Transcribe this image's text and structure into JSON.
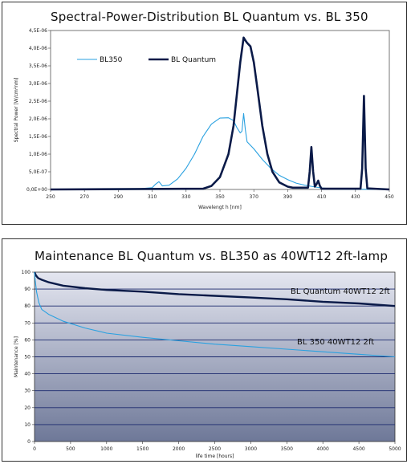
{
  "chart_data": [
    {
      "type": "line",
      "title": "Spectral-Power-Distribution      BL  Quantum   vs.  BL  350",
      "xlabel": "Wavelengt h [nm]",
      "ylabel": "Spectral Power [W/cm²nm]",
      "xlim": [
        250,
        450
      ],
      "ylim": [
        0,
        4.5e-06
      ],
      "x_ticks": [
        "250",
        "270",
        "290",
        "310",
        "330",
        "350",
        "370",
        "390",
        "410",
        "430",
        "450"
      ],
      "y_ticks": [
        "0,0E+00",
        "5,0E-07",
        "1,0E-06",
        "1,5E-06",
        "2,0E-06",
        "2,5E-06",
        "3,0E-06",
        "3,5E-06",
        "4,0E-06",
        "4,5E-06"
      ],
      "grid": false,
      "legend": "top-left",
      "series": [
        {
          "name": "BL350",
          "color": "#2aa1e0",
          "points": [
            [
              250,
              0.01
            ],
            [
              300,
              0.01
            ],
            [
              310,
              0.05
            ],
            [
              312,
              0.15
            ],
            [
              314,
              0.22
            ],
            [
              316,
              0.1
            ],
            [
              320,
              0.12
            ],
            [
              325,
              0.3
            ],
            [
              330,
              0.6
            ],
            [
              335,
              1.0
            ],
            [
              340,
              1.5
            ],
            [
              345,
              1.85
            ],
            [
              350,
              2.02
            ],
            [
              355,
              2.03
            ],
            [
              358,
              1.95
            ],
            [
              360,
              1.75
            ],
            [
              362,
              1.6
            ],
            [
              363,
              1.65
            ],
            [
              364,
              2.15
            ],
            [
              365,
              1.7
            ],
            [
              366,
              1.35
            ],
            [
              370,
              1.15
            ],
            [
              375,
              0.85
            ],
            [
              380,
              0.6
            ],
            [
              385,
              0.4
            ],
            [
              390,
              0.28
            ],
            [
              395,
              0.18
            ],
            [
              400,
              0.12
            ],
            [
              405,
              0.08
            ],
            [
              410,
              0.04
            ],
            [
              420,
              0.01
            ],
            [
              450,
              0.0
            ]
          ]
        },
        {
          "name": "BL Quantum",
          "color": "#0a1a48",
          "points": [
            [
              250,
              0.0
            ],
            [
              340,
              0.02
            ],
            [
              345,
              0.1
            ],
            [
              350,
              0.35
            ],
            [
              355,
              1.0
            ],
            [
              358,
              1.8
            ],
            [
              360,
              2.7
            ],
            [
              362,
              3.6
            ],
            [
              364,
              4.3
            ],
            [
              365,
              4.22
            ],
            [
              366,
              4.15
            ],
            [
              368,
              4.05
            ],
            [
              370,
              3.6
            ],
            [
              372,
              2.9
            ],
            [
              375,
              1.8
            ],
            [
              378,
              1.0
            ],
            [
              381,
              0.5
            ],
            [
              385,
              0.2
            ],
            [
              390,
              0.08
            ],
            [
              393,
              0.05
            ],
            [
              398,
              0.05
            ],
            [
              402,
              0.05
            ],
            [
              403,
              0.5
            ],
            [
              404,
              1.2
            ],
            [
              405,
              0.5
            ],
            [
              406,
              0.08
            ],
            [
              407,
              0.15
            ],
            [
              408,
              0.25
            ],
            [
              409,
              0.1
            ],
            [
              410,
              0.02
            ],
            [
              433,
              0.02
            ],
            [
              434,
              0.6
            ],
            [
              435,
              2.65
            ],
            [
              436,
              0.6
            ],
            [
              437,
              0.03
            ],
            [
              450,
              0.0
            ]
          ]
        }
      ]
    },
    {
      "type": "line",
      "title": "Maintenance    BL  Quantum   vs.  BL350   as  40WT12  2ft-lamp",
      "xlabel": "life time [hours]",
      "ylabel": "Maintenance [%]",
      "xlim": [
        0,
        5000
      ],
      "ylim": [
        0,
        100
      ],
      "x_ticks": [
        "0",
        "500",
        "1000",
        "1500",
        "2000",
        "2500",
        "3000",
        "3500",
        "4000",
        "4500",
        "5000"
      ],
      "y_ticks": [
        "0",
        "10",
        "20",
        "30",
        "40",
        "50",
        "60",
        "70",
        "80",
        "90",
        "100"
      ],
      "grid": true,
      "legend": "inline",
      "series": [
        {
          "name": "BL Quantum 40WT12 2ft",
          "color": "#0a1a48",
          "points": [
            [
              0,
              100
            ],
            [
              20,
              98
            ],
            [
              50,
              96.5
            ],
            [
              100,
              95.5
            ],
            [
              200,
              94
            ],
            [
              400,
              92
            ],
            [
              700,
              90.5
            ],
            [
              1000,
              89.5
            ],
            [
              1500,
              88.5
            ],
            [
              2000,
              87
            ],
            [
              2500,
              86
            ],
            [
              3000,
              85
            ],
            [
              3500,
              84
            ],
            [
              4000,
              82.5
            ],
            [
              4500,
              81.5
            ],
            [
              5000,
              80
            ]
          ]
        },
        {
          "name": "BL 350 40WT12 2ft",
          "color": "#2aa1e0",
          "points": [
            [
              0,
              100
            ],
            [
              10,
              95
            ],
            [
              30,
              88
            ],
            [
              60,
              82
            ],
            [
              100,
              78
            ],
            [
              200,
              75
            ],
            [
              400,
              71
            ],
            [
              700,
              67
            ],
            [
              1000,
              64
            ],
            [
              1500,
              61.5
            ],
            [
              2000,
              59.5
            ],
            [
              2500,
              57.5
            ],
            [
              3000,
              56
            ],
            [
              3500,
              54.5
            ],
            [
              4000,
              53
            ],
            [
              4500,
              51.5
            ],
            [
              5000,
              50
            ]
          ]
        }
      ]
    }
  ],
  "colors": {
    "plot_bg_top": "#e4e6f0",
    "plot_bg_bottom": "#6e7898",
    "grid": "#1c2a6e"
  }
}
